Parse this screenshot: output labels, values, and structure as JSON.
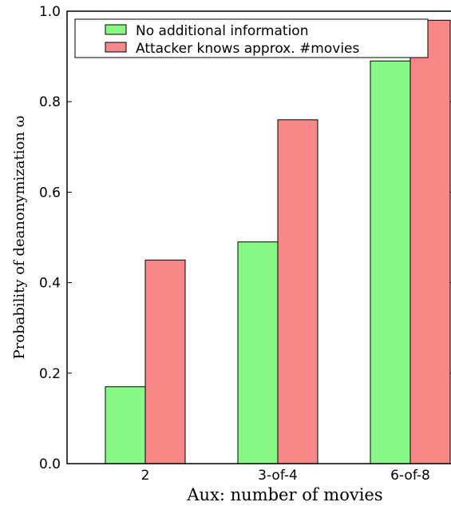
{
  "chart_data": {
    "type": "bar",
    "categories": [
      "2",
      "3-of-4",
      "6-of-8"
    ],
    "series": [
      {
        "name": "No additional information",
        "values": [
          0.17,
          0.49,
          0.89
        ],
        "color": "#88f888"
      },
      {
        "name": "Attacker knows approx. #movies",
        "values": [
          0.45,
          0.76,
          0.98
        ],
        "color": "#f88888"
      }
    ],
    "xlabel": "Aux: number of movies",
    "ylabel": "Probability of deanonymization ω",
    "ylim": [
      0.0,
      1.0
    ],
    "yticks": [
      "0.0",
      "0.2",
      "0.4",
      "0.6",
      "0.8",
      "1.0"
    ],
    "legend_position": "top",
    "grid": false
  }
}
